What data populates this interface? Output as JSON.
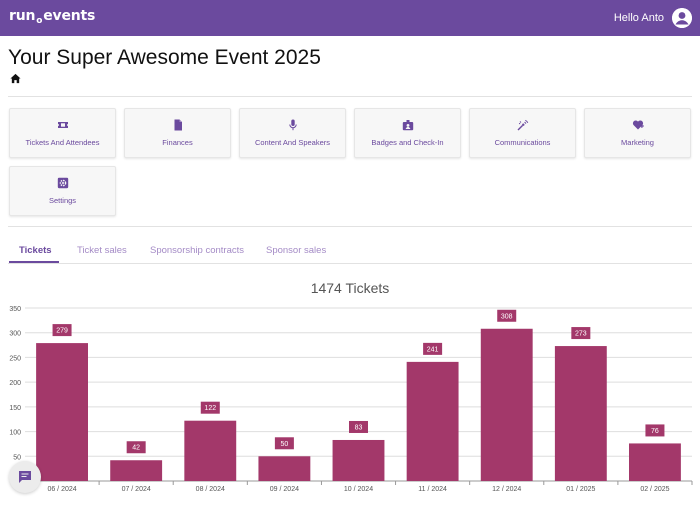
{
  "header": {
    "logo_left": "run",
    "logo_mid": "o",
    "logo_right": "events",
    "greeting": "Hello Anto",
    "brand_color": "#6b4a9e"
  },
  "page": {
    "title": "Your Super Awesome Event 2025"
  },
  "tiles": [
    {
      "label": "Tickets And Attendees",
      "icon": "ticket-icon"
    },
    {
      "label": "Finances",
      "icon": "document-icon"
    },
    {
      "label": "Content And Speakers",
      "icon": "microphone-icon"
    },
    {
      "label": "Badges and Check-In",
      "icon": "badge-icon"
    },
    {
      "label": "Communications",
      "icon": "broadcast-icon"
    },
    {
      "label": "Marketing",
      "icon": "heart-plus-icon"
    },
    {
      "label": "Settings",
      "icon": "settings-icon"
    }
  ],
  "tabs": [
    {
      "label": "Tickets",
      "active": true
    },
    {
      "label": "Ticket sales",
      "active": false
    },
    {
      "label": "Sponsorship contracts",
      "active": false
    },
    {
      "label": "Sponsor sales",
      "active": false
    }
  ],
  "chart_data": {
    "type": "bar",
    "title": "1474 Tickets",
    "categories": [
      "06 / 2024",
      "07 / 2024",
      "08 / 2024",
      "09 / 2024",
      "10 / 2024",
      "11 / 2024",
      "12 / 2024",
      "01 / 2025",
      "02 / 2025"
    ],
    "values": [
      279,
      42,
      122,
      50,
      83,
      241,
      308,
      273,
      76
    ],
    "ylim": [
      0,
      350
    ],
    "yticks": [
      50,
      100,
      150,
      200,
      250,
      300,
      350
    ],
    "grid": true,
    "bar_color": "#a3386a",
    "xlabel": "",
    "ylabel": ""
  }
}
